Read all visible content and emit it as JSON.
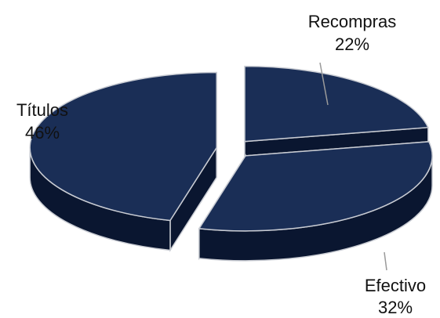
{
  "chart_data": {
    "type": "pie",
    "style": "3d-exploded",
    "categories": [
      "Recompras",
      "Efectivo",
      "Títulos"
    ],
    "values": [
      22,
      32,
      46
    ],
    "labels": [
      {
        "name": "Recompras",
        "pct": "22%"
      },
      {
        "name": "Efectivo",
        "pct": "32%"
      },
      {
        "name": "Títulos",
        "pct": "46%"
      }
    ],
    "title": "",
    "legend": "none",
    "colors": {
      "top": "#1a2e56",
      "side": "#0a1630",
      "edge": "#c9ccd3",
      "leader": "#9a9a9a"
    }
  }
}
